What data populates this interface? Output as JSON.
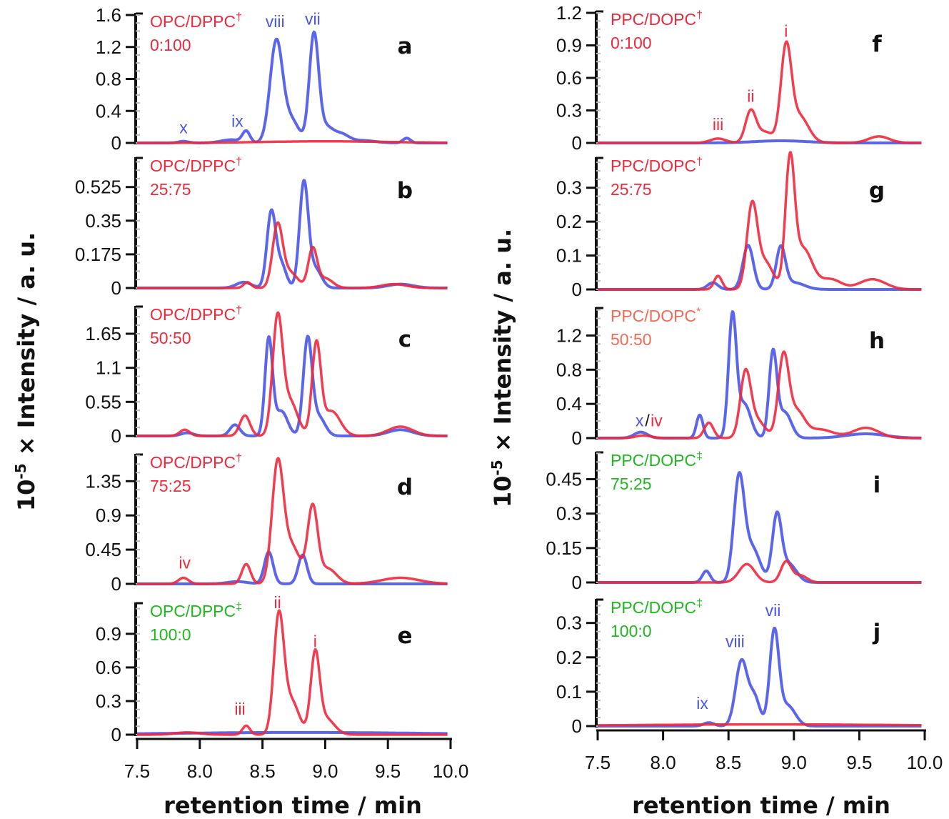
{
  "colors": {
    "blue": "#4a55e8",
    "red": "#f0283c",
    "green": "#1fb81f",
    "orange": "#f26a55",
    "axis": "#111111"
  },
  "chart_data": {
    "type": "line",
    "ylabel_prefix": "10",
    "ylabel_exp": "-5",
    "ylabel_rest": " × Intensity / a. u.",
    "xlabel": "retention time / min",
    "xlim": [
      7.5,
      10.0
    ],
    "xticks": [
      "7.5",
      "8.0",
      "8.5",
      "9.0",
      "9.5",
      "10.0"
    ],
    "curve_model": "sum of gaussian peaks (t = retention time / min, h = intensity, w = sigma / min)",
    "panels": [
      {
        "letter": "a",
        "name": "OPC/DPPC",
        "mark": "†",
        "ratio": "0:100",
        "label_color": "red",
        "yticks": [
          "0",
          "0.4",
          "0.8",
          "1.2",
          "1.6"
        ],
        "ymax": 1.6,
        "annotations": [
          {
            "text": "x",
            "t": 7.87,
            "y": 0.12,
            "color": "blue"
          },
          {
            "text": "ix",
            "t": 8.3,
            "y": 0.2,
            "color": "blue"
          },
          {
            "text": "viii",
            "t": 8.6,
            "y": 1.45,
            "color": "blue"
          },
          {
            "text": "vii",
            "t": 8.9,
            "y": 1.48,
            "color": "blue"
          }
        ],
        "series": [
          {
            "name": "blue",
            "peaks": [
              {
                "t": 7.87,
                "h": 0.02,
                "w": 0.04
              },
              {
                "t": 8.25,
                "h": 0.04,
                "w": 0.08
              },
              {
                "t": 8.37,
                "h": 0.14,
                "w": 0.03
              },
              {
                "t": 8.61,
                "h": 1.26,
                "w": 0.05
              },
              {
                "t": 8.73,
                "h": 0.28,
                "w": 0.06
              },
              {
                "t": 8.91,
                "h": 1.32,
                "w": 0.037
              },
              {
                "t": 9.0,
                "h": 0.2,
                "w": 0.06
              },
              {
                "t": 9.13,
                "h": 0.1,
                "w": 0.06
              },
              {
                "t": 9.3,
                "h": 0.03,
                "w": 0.1
              },
              {
                "t": 9.65,
                "h": 0.06,
                "w": 0.03
              }
            ]
          },
          {
            "name": "red",
            "peaks": [
              {
                "t": 9.0,
                "h": 0.02,
                "w": 0.5
              }
            ]
          }
        ]
      },
      {
        "letter": "b",
        "name": "OPC/DPPC",
        "mark": "†",
        "ratio": "25:75",
        "label_color": "red",
        "yticks": [
          "0",
          "0.175",
          "0.35",
          "0.525"
        ],
        "ymax": 0.68,
        "annotations": [],
        "series": [
          {
            "name": "blue",
            "peaks": [
              {
                "t": 8.35,
                "h": 0.03,
                "w": 0.06
              },
              {
                "t": 8.57,
                "h": 0.39,
                "w": 0.035
              },
              {
                "t": 8.65,
                "h": 0.12,
                "w": 0.04
              },
              {
                "t": 8.83,
                "h": 0.54,
                "w": 0.035
              },
              {
                "t": 8.92,
                "h": 0.1,
                "w": 0.05
              },
              {
                "t": 9.6,
                "h": 0.02,
                "w": 0.1
              }
            ]
          },
          {
            "name": "red",
            "peaks": [
              {
                "t": 8.38,
                "h": 0.03,
                "w": 0.03
              },
              {
                "t": 8.62,
                "h": 0.32,
                "w": 0.04
              },
              {
                "t": 8.72,
                "h": 0.08,
                "w": 0.06
              },
              {
                "t": 8.9,
                "h": 0.2,
                "w": 0.035
              },
              {
                "t": 9.0,
                "h": 0.05,
                "w": 0.06
              },
              {
                "t": 9.55,
                "h": 0.02,
                "w": 0.1
              }
            ]
          }
        ]
      },
      {
        "letter": "c",
        "name": "OPC/DPPC",
        "mark": "†",
        "ratio": "50:50",
        "label_color": "red",
        "yticks": [
          "0",
          "0.55",
          "1.1",
          "1.65"
        ],
        "ymax": 2.1,
        "annotations": [],
        "series": [
          {
            "name": "blue",
            "peaks": [
              {
                "t": 7.9,
                "h": 0.05,
                "w": 0.05
              },
              {
                "t": 8.28,
                "h": 0.18,
                "w": 0.04
              },
              {
                "t": 8.55,
                "h": 1.55,
                "w": 0.03
              },
              {
                "t": 8.65,
                "h": 0.4,
                "w": 0.05
              },
              {
                "t": 8.86,
                "h": 1.55,
                "w": 0.035
              },
              {
                "t": 8.95,
                "h": 0.3,
                "w": 0.05
              },
              {
                "t": 9.6,
                "h": 0.1,
                "w": 0.1
              }
            ]
          },
          {
            "name": "red",
            "peaks": [
              {
                "t": 7.88,
                "h": 0.1,
                "w": 0.04
              },
              {
                "t": 8.36,
                "h": 0.33,
                "w": 0.04
              },
              {
                "t": 8.62,
                "h": 1.85,
                "w": 0.04
              },
              {
                "t": 8.72,
                "h": 0.55,
                "w": 0.06
              },
              {
                "t": 8.93,
                "h": 1.45,
                "w": 0.035
              },
              {
                "t": 9.05,
                "h": 0.4,
                "w": 0.07
              },
              {
                "t": 9.6,
                "h": 0.15,
                "w": 0.1
              }
            ]
          }
        ]
      },
      {
        "letter": "d",
        "name": "OPC/DPPC",
        "mark": "†",
        "ratio": "75:25",
        "label_color": "red",
        "yticks": [
          "0",
          "0.45",
          "0.9",
          "1.35"
        ],
        "ymax": 1.71,
        "annotations": [
          {
            "text": "iv",
            "t": 7.88,
            "y": 0.2,
            "color": "red"
          }
        ],
        "series": [
          {
            "name": "blue",
            "peaks": [
              {
                "t": 8.3,
                "h": 0.03,
                "w": 0.08
              },
              {
                "t": 8.55,
                "h": 0.42,
                "w": 0.035
              },
              {
                "t": 8.82,
                "h": 0.38,
                "w": 0.035
              }
            ]
          },
          {
            "name": "red",
            "peaks": [
              {
                "t": 7.87,
                "h": 0.08,
                "w": 0.04
              },
              {
                "t": 8.37,
                "h": 0.26,
                "w": 0.035
              },
              {
                "t": 8.62,
                "h": 1.5,
                "w": 0.045
              },
              {
                "t": 8.73,
                "h": 0.5,
                "w": 0.07
              },
              {
                "t": 8.9,
                "h": 0.98,
                "w": 0.04
              },
              {
                "t": 9.02,
                "h": 0.2,
                "w": 0.07
              },
              {
                "t": 9.6,
                "h": 0.08,
                "w": 0.15
              }
            ]
          }
        ]
      },
      {
        "letter": "e",
        "name": "OPC/DPPC",
        "mark": "‡",
        "ratio": "100:0",
        "label_color": "green",
        "yticks": [
          "0",
          "0.3",
          "0.6",
          "0.9"
        ],
        "ymax": 1.18,
        "annotations": [
          {
            "text": "iii",
            "t": 8.32,
            "y": 0.18,
            "color": "red"
          },
          {
            "text": "ii",
            "t": 8.62,
            "y": 1.13,
            "color": "red"
          },
          {
            "text": "i",
            "t": 8.92,
            "y": 0.78,
            "color": "red"
          }
        ],
        "series": [
          {
            "name": "blue",
            "peaks": [
              {
                "t": 8.8,
                "h": 0.02,
                "w": 1.0
              }
            ]
          },
          {
            "name": "red",
            "peaks": [
              {
                "t": 7.9,
                "h": 0.02,
                "w": 0.1
              },
              {
                "t": 8.37,
                "h": 0.08,
                "w": 0.03
              },
              {
                "t": 8.63,
                "h": 1.03,
                "w": 0.04
              },
              {
                "t": 8.73,
                "h": 0.3,
                "w": 0.06
              },
              {
                "t": 8.92,
                "h": 0.68,
                "w": 0.035
              },
              {
                "t": 9.0,
                "h": 0.15,
                "w": 0.07
              }
            ]
          }
        ]
      },
      {
        "letter": "f",
        "name": "PPC/DOPC",
        "mark": "†",
        "ratio": "0:100",
        "label_color": "red",
        "yticks": [
          "0",
          "0.3",
          "0.6",
          "0.9",
          "1.2"
        ],
        "ymax": 1.2,
        "annotations": [
          {
            "text": "iii",
            "t": 8.42,
            "y": 0.12,
            "color": "red"
          },
          {
            "text": "ii",
            "t": 8.67,
            "y": 0.38,
            "color": "red"
          },
          {
            "text": "i",
            "t": 8.94,
            "y": 0.98,
            "color": "red"
          }
        ],
        "series": [
          {
            "name": "blue",
            "peaks": [
              {
                "t": 8.9,
                "h": 0.02,
                "w": 0.2
              }
            ]
          },
          {
            "name": "red",
            "peaks": [
              {
                "t": 8.42,
                "h": 0.04,
                "w": 0.06
              },
              {
                "t": 8.67,
                "h": 0.29,
                "w": 0.04
              },
              {
                "t": 8.78,
                "h": 0.1,
                "w": 0.06
              },
              {
                "t": 8.94,
                "h": 0.84,
                "w": 0.04
              },
              {
                "t": 9.04,
                "h": 0.25,
                "w": 0.07
              },
              {
                "t": 9.65,
                "h": 0.06,
                "w": 0.08
              }
            ]
          }
        ]
      },
      {
        "letter": "g",
        "name": "PPC/DOPC",
        "mark": "†",
        "ratio": "25:75",
        "label_color": "red",
        "yticks": [
          "0",
          "0.1",
          "0.2",
          "0.3"
        ],
        "ymax": 0.39,
        "annotations": [],
        "series": [
          {
            "name": "blue",
            "peaks": [
              {
                "t": 8.38,
                "h": 0.02,
                "w": 0.04
              },
              {
                "t": 8.65,
                "h": 0.13,
                "w": 0.04
              },
              {
                "t": 8.9,
                "h": 0.12,
                "w": 0.035
              },
              {
                "t": 9.0,
                "h": 0.02,
                "w": 0.08
              }
            ]
          },
          {
            "name": "red",
            "peaks": [
              {
                "t": 8.42,
                "h": 0.04,
                "w": 0.03
              },
              {
                "t": 8.68,
                "h": 0.24,
                "w": 0.04
              },
              {
                "t": 8.78,
                "h": 0.08,
                "w": 0.06
              },
              {
                "t": 8.97,
                "h": 0.36,
                "w": 0.035
              },
              {
                "t": 9.07,
                "h": 0.12,
                "w": 0.07
              },
              {
                "t": 9.28,
                "h": 0.03,
                "w": 0.08
              },
              {
                "t": 9.6,
                "h": 0.03,
                "w": 0.1
              }
            ]
          }
        ]
      },
      {
        "letter": "h",
        "name": "PPC/DOPC",
        "mark": "*",
        "ratio": "50:50",
        "label_color": "orange",
        "yticks": [
          "0",
          "0.4",
          "0.8",
          "1.2"
        ],
        "ymax": 1.53,
        "annotations": [
          {
            "text": "x",
            "t": 7.82,
            "y": 0.14,
            "color": "blue"
          },
          {
            "text": "/",
            "t": 7.88,
            "y": 0.14,
            "color": "axis"
          },
          {
            "text": "iv",
            "t": 7.95,
            "y": 0.14,
            "color": "red"
          }
        ],
        "series": [
          {
            "name": "blue",
            "peaks": [
              {
                "t": 7.83,
                "h": 0.07,
                "w": 0.05
              },
              {
                "t": 8.28,
                "h": 0.27,
                "w": 0.025
              },
              {
                "t": 8.53,
                "h": 1.4,
                "w": 0.03
              },
              {
                "t": 8.62,
                "h": 0.4,
                "w": 0.05
              },
              {
                "t": 8.84,
                "h": 0.98,
                "w": 0.03
              },
              {
                "t": 8.93,
                "h": 0.3,
                "w": 0.05
              },
              {
                "t": 9.55,
                "h": 0.05,
                "w": 0.15
              }
            ]
          },
          {
            "name": "red",
            "peaks": [
              {
                "t": 7.85,
                "h": 0.03,
                "w": 0.06
              },
              {
                "t": 8.35,
                "h": 0.18,
                "w": 0.035
              },
              {
                "t": 8.63,
                "h": 0.74,
                "w": 0.04
              },
              {
                "t": 8.72,
                "h": 0.2,
                "w": 0.06
              },
              {
                "t": 8.92,
                "h": 0.93,
                "w": 0.04
              },
              {
                "t": 9.02,
                "h": 0.3,
                "w": 0.06
              },
              {
                "t": 9.2,
                "h": 0.1,
                "w": 0.1
              },
              {
                "t": 9.55,
                "h": 0.12,
                "w": 0.1
              }
            ]
          }
        ]
      },
      {
        "letter": "i",
        "name": "PPC/DOPC",
        "mark": "‡",
        "ratio": "75:25",
        "label_color": "green",
        "yticks": [
          "0",
          "0.15",
          "0.3",
          "0.45"
        ],
        "ymax": 0.57,
        "annotations": [],
        "series": [
          {
            "name": "blue",
            "peaks": [
              {
                "t": 8.33,
                "h": 0.05,
                "w": 0.03
              },
              {
                "t": 8.58,
                "h": 0.44,
                "w": 0.04
              },
              {
                "t": 8.68,
                "h": 0.15,
                "w": 0.06
              },
              {
                "t": 8.87,
                "h": 0.28,
                "w": 0.035
              },
              {
                "t": 8.96,
                "h": 0.08,
                "w": 0.06
              }
            ]
          },
          {
            "name": "red",
            "peaks": [
              {
                "t": 8.64,
                "h": 0.08,
                "w": 0.06
              },
              {
                "t": 8.94,
                "h": 0.09,
                "w": 0.04
              },
              {
                "t": 9.05,
                "h": 0.03,
                "w": 0.05
              }
            ]
          }
        ]
      },
      {
        "letter": "j",
        "name": "PPC/DOPC",
        "mark": "‡",
        "ratio": "100:0",
        "label_color": "green",
        "yticks": [
          "0",
          "0.1",
          "0.2",
          "0.3"
        ],
        "ymax": 0.37,
        "annotations": [
          {
            "text": "ix",
            "t": 8.3,
            "y": 0.05,
            "color": "blue"
          },
          {
            "text": "viii",
            "t": 8.55,
            "y": 0.23,
            "color": "blue"
          },
          {
            "text": "vii",
            "t": 8.84,
            "y": 0.32,
            "color": "blue"
          }
        ],
        "series": [
          {
            "name": "blue",
            "peaks": [
              {
                "t": 8.35,
                "h": 0.01,
                "w": 0.04
              },
              {
                "t": 8.6,
                "h": 0.19,
                "w": 0.045
              },
              {
                "t": 8.7,
                "h": 0.08,
                "w": 0.04
              },
              {
                "t": 8.85,
                "h": 0.27,
                "w": 0.035
              },
              {
                "t": 8.95,
                "h": 0.06,
                "w": 0.06
              }
            ]
          },
          {
            "name": "red",
            "peaks": [
              {
                "t": 8.8,
                "h": 0.005,
                "w": 1.0
              }
            ]
          }
        ]
      }
    ]
  }
}
